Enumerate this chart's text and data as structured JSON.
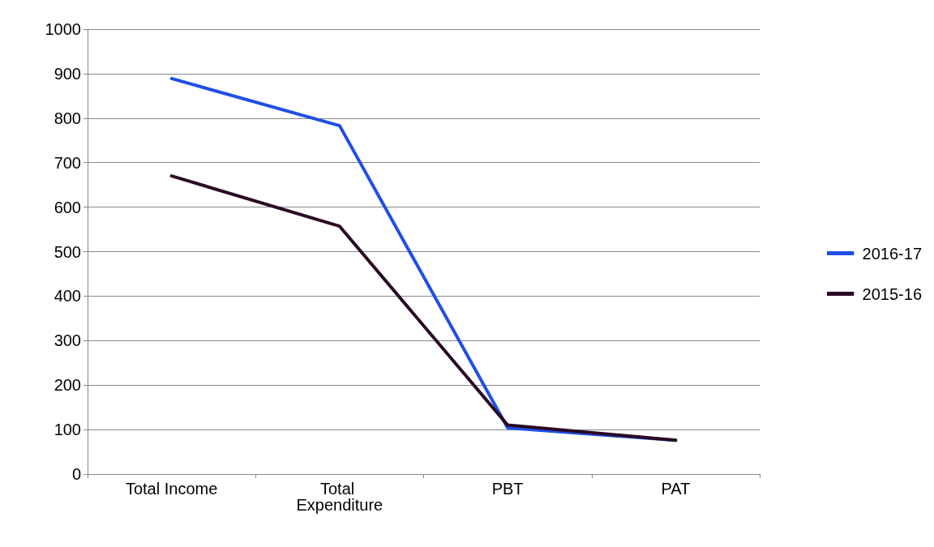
{
  "chart_data": {
    "type": "line",
    "categories": [
      "Total Income",
      "Total Expenditure",
      "PBT",
      "PAT"
    ],
    "series": [
      {
        "name": "2016-17",
        "color": "#1f4fe6",
        "values": [
          889,
          783,
          104,
          76
        ]
      },
      {
        "name": "2015-16",
        "color": "#2a0a24",
        "values": [
          670,
          557,
          110,
          76
        ]
      }
    ],
    "ylim": [
      0,
      1000
    ],
    "yticks": [
      0,
      100,
      200,
      300,
      400,
      500,
      600,
      700,
      800,
      900,
      1000
    ],
    "grid": "y",
    "legend": "right",
    "marker": "none",
    "line_style": "solid"
  }
}
